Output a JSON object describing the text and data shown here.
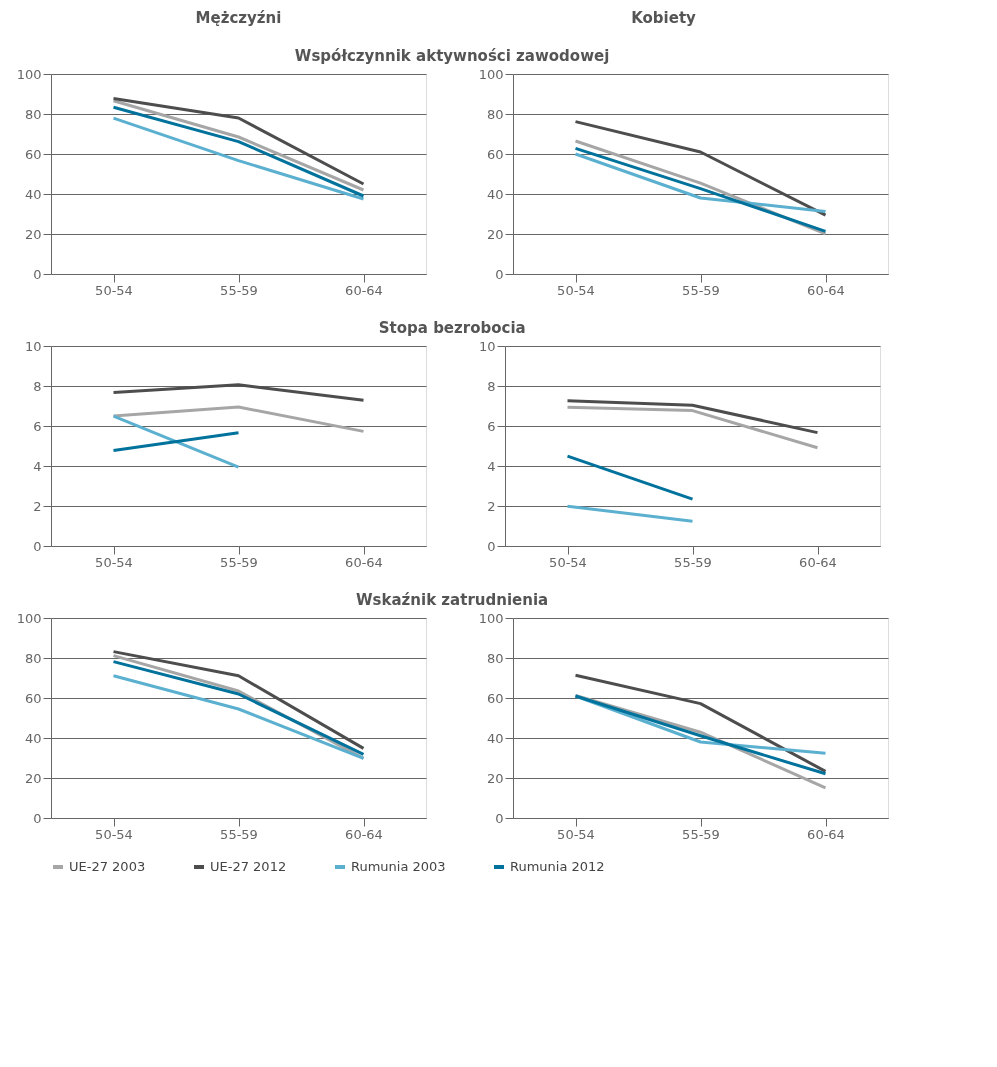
{
  "chart_data": [
    {
      "type": "line",
      "title": "Mężczyźni",
      "subtitle": "Współczynnik aktywności zawodowej",
      "categories": [
        "50-54",
        "55-59",
        "60-64"
      ],
      "ylim": [
        0,
        100
      ],
      "yticks": [
        0,
        20,
        40,
        60,
        80,
        100
      ],
      "grid": "y",
      "legend": "bottom",
      "series": [
        {
          "name": "UE-27 2003",
          "color": "#a6a6a6",
          "values": [
            86.6,
            68.5,
            42
          ]
        },
        {
          "name": "UE-27 2012",
          "color": "#4d4d4d",
          "values": [
            87.7,
            78,
            45
          ]
        },
        {
          "name": "Rumunia 2003",
          "color": "#5bb0d0",
          "values": [
            77.9,
            56.7,
            37.5
          ]
        },
        {
          "name": "Rumunia 2012",
          "color": "#00729c",
          "values": [
            83.4,
            66.2,
            39
          ]
        }
      ]
    },
    {
      "type": "line",
      "title": "Kobiety",
      "categories": [
        "50-54",
        "55-59",
        "60-64"
      ],
      "ylim": [
        0,
        100
      ],
      "yticks": [
        0,
        20,
        40,
        60,
        80,
        100
      ],
      "grid": "y",
      "legend": "bottom",
      "series": [
        {
          "name": "UE-27 2003",
          "color": "#a6a6a6",
          "values": [
            66.5,
            45.4,
            20.1
          ]
        },
        {
          "name": "UE-27 2012",
          "color": "#4d4d4d",
          "values": [
            76.2,
            61,
            29.4
          ]
        },
        {
          "name": "Rumunia 2003",
          "color": "#5bb0d0",
          "values": [
            60,
            38,
            31.3
          ]
        },
        {
          "name": "Rumunia 2012",
          "color": "#00729c",
          "values": [
            62.8,
            42.7,
            21.3
          ]
        }
      ]
    },
    {
      "type": "line",
      "subtitle": "Stopa bezrobocia",
      "categories": [
        "50-54",
        "55-59",
        "60-64"
      ],
      "ylim": [
        0,
        10
      ],
      "yticks": [
        0,
        2,
        4,
        6,
        8,
        10
      ],
      "grid": "y",
      "legend": "bottom",
      "series": [
        {
          "name": "UE-27 2003",
          "color": "#a6a6a6",
          "values": [
            6.5,
            6.95,
            5.73
          ]
        },
        {
          "name": "UE-27 2012",
          "color": "#4d4d4d",
          "values": [
            7.67,
            8.06,
            7.29
          ]
        },
        {
          "name": "Rumunia 2003",
          "color": "#5bb0d0",
          "values": [
            6.49,
            3.94,
            null
          ]
        },
        {
          "name": "Rumunia 2012",
          "color": "#00729c",
          "values": [
            4.77,
            5.66,
            null
          ]
        }
      ]
    },
    {
      "type": "line",
      "categories": [
        "50-54",
        "55-59",
        "60-64"
      ],
      "ylim": [
        0,
        10
      ],
      "yticks": [
        0,
        2,
        4,
        6,
        8,
        10
      ],
      "grid": "y",
      "legend": "bottom",
      "series": [
        {
          "name": "UE-27 2003",
          "color": "#a6a6a6",
          "values": [
            6.94,
            6.77,
            4.91
          ]
        },
        {
          "name": "UE-27 2012",
          "color": "#4d4d4d",
          "values": [
            7.26,
            7.04,
            5.67
          ]
        },
        {
          "name": "Rumunia 2003",
          "color": "#5bb0d0",
          "values": [
            1.99,
            1.24,
            null
          ]
        },
        {
          "name": "Rumunia 2012",
          "color": "#00729c",
          "values": [
            4.49,
            2.34,
            null
          ]
        }
      ]
    },
    {
      "type": "line",
      "subtitle": "Wskaźnik zatrudnienia",
      "categories": [
        "50-54",
        "55-59",
        "60-64"
      ],
      "ylim": [
        0,
        100
      ],
      "yticks": [
        0,
        20,
        40,
        60,
        80,
        100
      ],
      "grid": "y",
      "legend": "bottom",
      "series": [
        {
          "name": "UE-27 2003",
          "color": "#a6a6a6",
          "values": [
            81.2,
            63.5,
            29.8
          ]
        },
        {
          "name": "UE-27 2012",
          "color": "#4d4d4d",
          "values": [
            83.2,
            71.1,
            34.8
          ]
        },
        {
          "name": "Rumunia 2003",
          "color": "#5bb0d0",
          "values": [
            71.1,
            54.5,
            29.8
          ]
        },
        {
          "name": "Rumunia 2012",
          "color": "#00729c",
          "values": [
            78.2,
            62,
            31.8
          ]
        }
      ]
    },
    {
      "type": "line",
      "categories": [
        "50-54",
        "55-59",
        "60-64"
      ],
      "ylim": [
        0,
        100
      ],
      "yticks": [
        0,
        20,
        40,
        60,
        80,
        100
      ],
      "grid": "y",
      "legend": "bottom",
      "series": [
        {
          "name": "UE-27 2003",
          "color": "#a6a6a6",
          "values": [
            61.3,
            42.9,
            15.1
          ]
        },
        {
          "name": "UE-27 2012",
          "color": "#4d4d4d",
          "values": [
            71.4,
            57.2,
            23.3
          ]
        },
        {
          "name": "Rumunia 2003",
          "color": "#5bb0d0",
          "values": [
            61,
            38,
            32.4
          ]
        },
        {
          "name": "Rumunia 2012",
          "color": "#00729c",
          "values": [
            61,
            41.1,
            22.1
          ]
        }
      ]
    }
  ]
}
